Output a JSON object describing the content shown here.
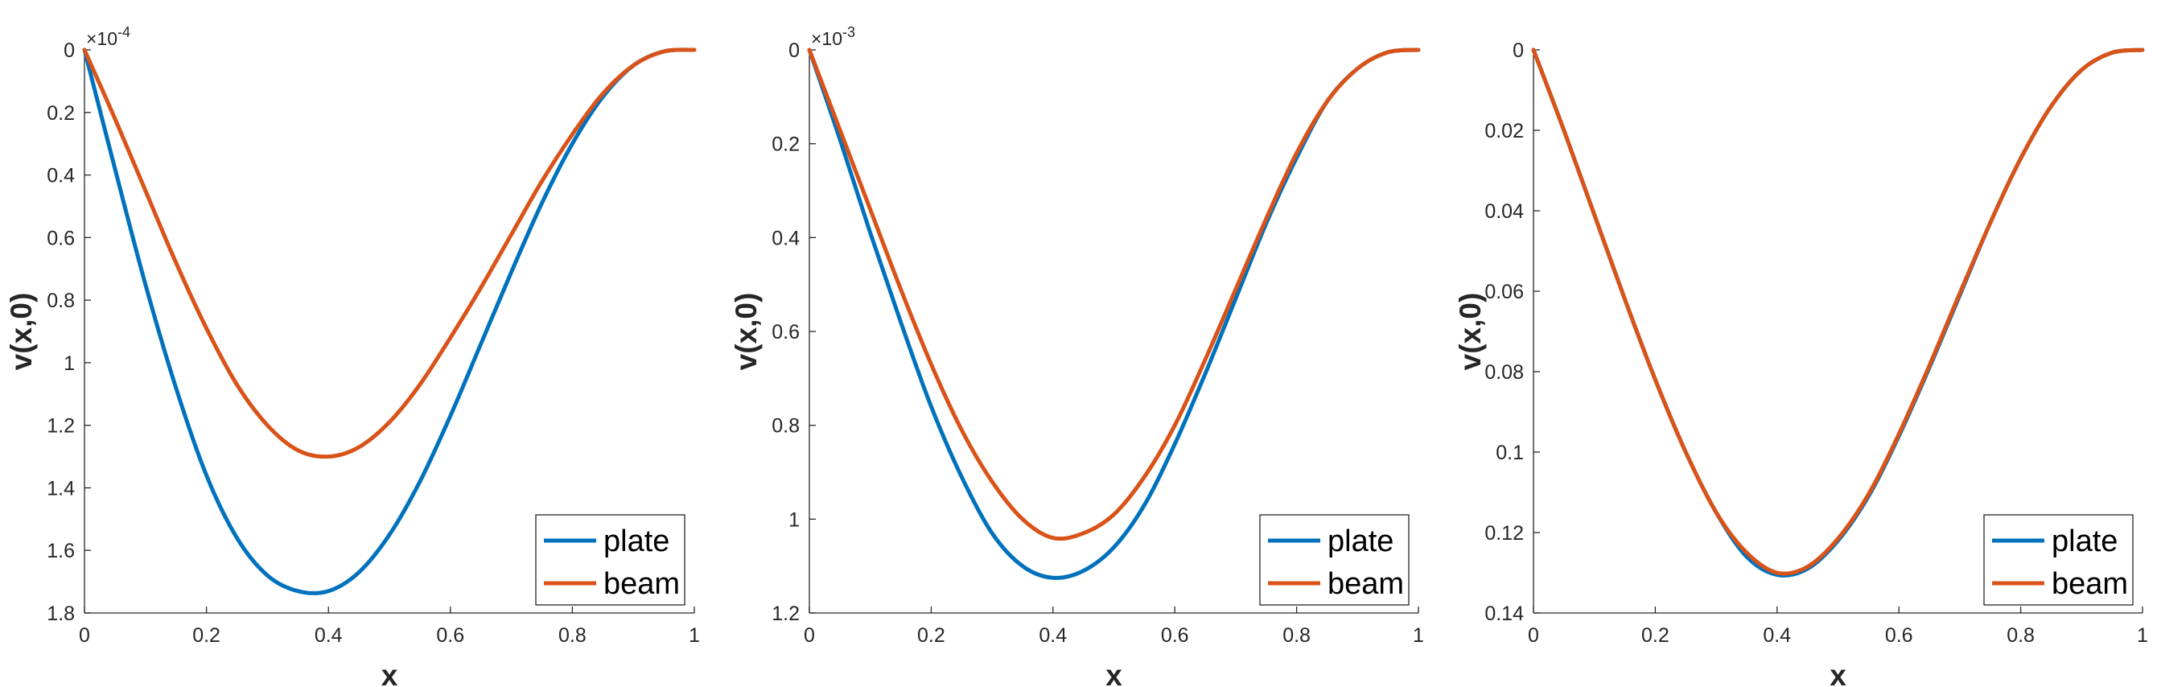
{
  "chart_data": [
    {
      "type": "line",
      "xlabel": "x",
      "ylabel": "v(x,0)",
      "y_direction": "reversed",
      "grid": false,
      "legend_position": "bottom-right",
      "xlim": [
        0,
        1
      ],
      "ylim": [
        0,
        1.8
      ],
      "xticks": [
        0,
        0.2,
        0.4,
        0.6,
        0.8,
        1
      ],
      "xtick_labels": [
        "0",
        "0.2",
        "0.4",
        "0.6",
        "0.8",
        "1"
      ],
      "yticks": [
        0,
        0.2,
        0.4,
        0.6,
        0.8,
        1,
        1.2,
        1.4,
        1.6,
        1.8
      ],
      "ytick_labels": [
        "0",
        "0.2",
        "0.4",
        "0.6",
        "0.8",
        "1",
        "1.2",
        "1.4",
        "1.6",
        "1.8"
      ],
      "y_exponent_label": "×10",
      "y_exponent_power": "-4",
      "series": [
        {
          "name": "plate",
          "color": "#0072BD",
          "x": [
            0,
            0.05,
            0.1,
            0.15,
            0.2,
            0.25,
            0.3,
            0.35,
            0.4,
            0.45,
            0.5,
            0.55,
            0.6,
            0.65,
            0.7,
            0.75,
            0.8,
            0.85,
            0.9,
            0.95,
            1
          ],
          "y": [
            0,
            0.38,
            0.75,
            1.08,
            1.36,
            1.56,
            1.68,
            1.73,
            1.73,
            1.67,
            1.55,
            1.38,
            1.17,
            0.94,
            0.71,
            0.49,
            0.3,
            0.15,
            0.05,
            0.005,
            0
          ]
        },
        {
          "name": "beam",
          "color": "#D95319",
          "x": [
            0,
            0.05,
            0.1,
            0.15,
            0.2,
            0.25,
            0.3,
            0.35,
            0.4,
            0.45,
            0.5,
            0.55,
            0.6,
            0.65,
            0.7,
            0.75,
            0.8,
            0.85,
            0.9,
            0.95,
            1
          ],
          "y": [
            0,
            0.22,
            0.45,
            0.68,
            0.89,
            1.07,
            1.2,
            1.28,
            1.3,
            1.27,
            1.19,
            1.07,
            0.92,
            0.76,
            0.59,
            0.42,
            0.27,
            0.14,
            0.05,
            0.005,
            0
          ]
        }
      ]
    },
    {
      "type": "line",
      "xlabel": "x",
      "ylabel": "v(x,0)",
      "y_direction": "reversed",
      "grid": false,
      "legend_position": "bottom-right",
      "xlim": [
        0,
        1
      ],
      "ylim": [
        0,
        1.2
      ],
      "xticks": [
        0,
        0.2,
        0.4,
        0.6,
        0.8,
        1
      ],
      "xtick_labels": [
        "0",
        "0.2",
        "0.4",
        "0.6",
        "0.8",
        "1"
      ],
      "yticks": [
        0,
        0.2,
        0.4,
        0.6,
        0.8,
        1,
        1.2
      ],
      "ytick_labels": [
        "0",
        "0.2",
        "0.4",
        "0.6",
        "0.8",
        "1",
        "1.2"
      ],
      "y_exponent_label": "×10",
      "y_exponent_power": "-3",
      "series": [
        {
          "name": "plate",
          "color": "#0072BD",
          "x": [
            0,
            0.05,
            0.1,
            0.15,
            0.2,
            0.25,
            0.3,
            0.35,
            0.4,
            0.45,
            0.5,
            0.55,
            0.6,
            0.65,
            0.7,
            0.75,
            0.8,
            0.85,
            0.9,
            0.95,
            1
          ],
          "y": [
            0,
            0.19,
            0.39,
            0.58,
            0.76,
            0.91,
            1.03,
            1.1,
            1.125,
            1.11,
            1.06,
            0.97,
            0.84,
            0.69,
            0.53,
            0.37,
            0.23,
            0.11,
            0.04,
            0.005,
            0
          ]
        },
        {
          "name": "beam",
          "color": "#D95319",
          "x": [
            0,
            0.05,
            0.1,
            0.15,
            0.2,
            0.25,
            0.3,
            0.35,
            0.4,
            0.45,
            0.5,
            0.55,
            0.6,
            0.65,
            0.7,
            0.75,
            0.8,
            0.85,
            0.9,
            0.95,
            1
          ],
          "y": [
            0,
            0.17,
            0.34,
            0.51,
            0.67,
            0.81,
            0.92,
            1.0,
            1.04,
            1.03,
            0.99,
            0.91,
            0.8,
            0.66,
            0.51,
            0.36,
            0.22,
            0.11,
            0.04,
            0.005,
            0
          ]
        }
      ]
    },
    {
      "type": "line",
      "xlabel": "x",
      "ylabel": "v(x,0)",
      "y_direction": "reversed",
      "grid": false,
      "legend_position": "bottom-right",
      "xlim": [
        0,
        1
      ],
      "ylim": [
        0,
        0.14
      ],
      "xticks": [
        0,
        0.2,
        0.4,
        0.6,
        0.8,
        1
      ],
      "xtick_labels": [
        "0",
        "0.2",
        "0.4",
        "0.6",
        "0.8",
        "1"
      ],
      "yticks": [
        0,
        0.02,
        0.04,
        0.06,
        0.08,
        0.1,
        0.12,
        0.14
      ],
      "ytick_labels": [
        "0",
        "0.02",
        "0.04",
        "0.06",
        "0.08",
        "0.1",
        "0.12",
        "0.14"
      ],
      "y_exponent_label": "",
      "y_exponent_power": "",
      "series": [
        {
          "name": "plate",
          "color": "#0072BD",
          "x": [
            0,
            0.05,
            0.1,
            0.15,
            0.2,
            0.25,
            0.3,
            0.35,
            0.4,
            0.45,
            0.5,
            0.55,
            0.6,
            0.65,
            0.7,
            0.75,
            0.8,
            0.85,
            0.9,
            0.95,
            1
          ],
          "y": [
            0,
            0.02,
            0.041,
            0.062,
            0.082,
            0.1,
            0.115,
            0.126,
            0.1305,
            0.129,
            0.122,
            0.111,
            0.096,
            0.079,
            0.061,
            0.043,
            0.027,
            0.014,
            0.005,
            0.0007,
            0
          ]
        },
        {
          "name": "beam",
          "color": "#D95319",
          "x": [
            0,
            0.05,
            0.1,
            0.15,
            0.2,
            0.25,
            0.3,
            0.35,
            0.4,
            0.45,
            0.5,
            0.55,
            0.6,
            0.65,
            0.7,
            0.75,
            0.8,
            0.85,
            0.9,
            0.95,
            1
          ],
          "y": [
            0,
            0.02,
            0.041,
            0.062,
            0.082,
            0.1,
            0.115,
            0.125,
            0.13,
            0.1285,
            0.1215,
            0.1105,
            0.0955,
            0.0785,
            0.0605,
            0.043,
            0.027,
            0.014,
            0.005,
            0.0007,
            0
          ]
        }
      ]
    }
  ]
}
